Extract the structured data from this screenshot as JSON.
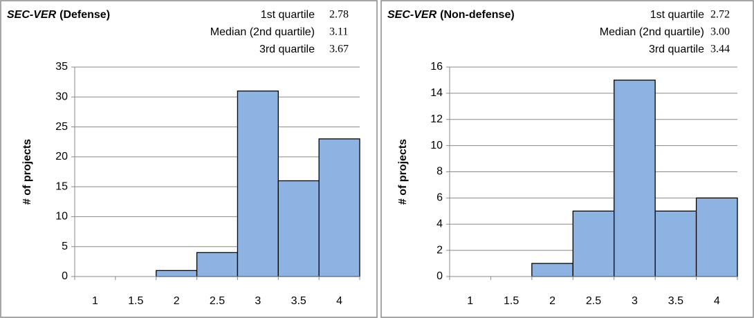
{
  "chart_data": [
    {
      "type": "bar",
      "title_code": "SEC-VER",
      "title": "(Defense)",
      "stats": [
        {
          "label": "1st quartile",
          "value": "2.78"
        },
        {
          "label": "Median (2nd quartile)",
          "value": "3.11"
        },
        {
          "label": "3rd quartile",
          "value": "3.67"
        }
      ],
      "y_label": "# of projects",
      "categories": [
        "1",
        "1.5",
        "2",
        "2.5",
        "3",
        "3.5",
        "4"
      ],
      "values": [
        0,
        0,
        1,
        4,
        31,
        16,
        23
      ],
      "color": "#8db3e2",
      "ylim": [
        0,
        35
      ],
      "yticks": [
        0,
        5,
        10,
        15,
        20,
        25,
        30,
        35
      ],
      "grid": true
    },
    {
      "type": "bar",
      "title_code": "SEC-VER",
      "title": "(Non-defense)",
      "stats": [
        {
          "label": "1st quartile",
          "value": "2.72"
        },
        {
          "label": "Median (2nd quartile)",
          "value": "3.00"
        },
        {
          "label": "3rd quartile",
          "value": "3.44"
        }
      ],
      "y_label": "# of projects",
      "categories": [
        "1",
        "1.5",
        "2",
        "2.5",
        "3",
        "3.5",
        "4"
      ],
      "values": [
        0,
        0,
        1,
        5,
        15,
        5,
        6
      ],
      "color": "#8db3e2",
      "ylim": [
        0,
        16
      ],
      "yticks": [
        0,
        2,
        4,
        6,
        8,
        10,
        12,
        14,
        16
      ],
      "grid": true
    }
  ]
}
